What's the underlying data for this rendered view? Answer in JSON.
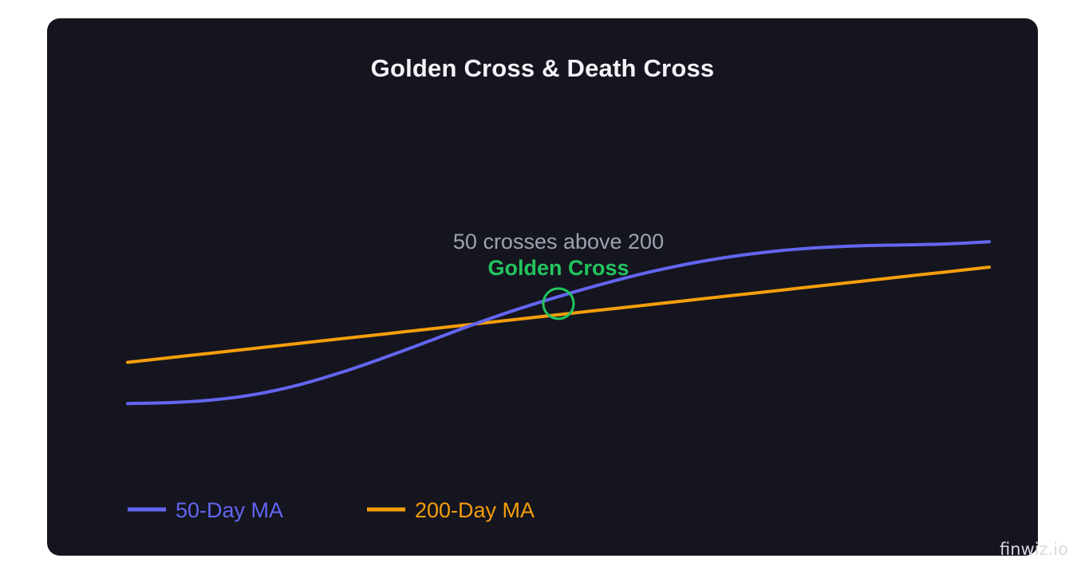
{
  "chart_data": {
    "type": "line",
    "title": "Golden Cross & Death Cross",
    "xlabel": "",
    "ylabel": "",
    "x": [
      0,
      5,
      10,
      15,
      20,
      25,
      30,
      35,
      40,
      45,
      50,
      55,
      60,
      65,
      70,
      75,
      80,
      85,
      90,
      95,
      100
    ],
    "series": [
      {
        "name": "50-Day MA",
        "color": "#6366f1",
        "values": [
          12,
          12.3,
          13.2,
          15,
          18,
          22,
          26.7,
          31.7,
          36.8,
          41.5,
          45.7,
          49.6,
          53.1,
          56,
          58.3,
          60,
          61.1,
          61.7,
          62,
          62.3,
          63
        ]
      },
      {
        "name": "200-Day MA",
        "color": "#f59e0b",
        "values": [
          25,
          26.5,
          28,
          29.5,
          31,
          32.5,
          34,
          35.5,
          37,
          38.5,
          40,
          41.5,
          43,
          44.5,
          46,
          47.5,
          49,
          50.5,
          52,
          53.5,
          55
        ]
      }
    ],
    "xlim": [
      0,
      100
    ],
    "ylim": [
      0,
      100
    ],
    "grid": false,
    "legend_position": "bottom-left",
    "annotations": [
      {
        "label": "Golden Cross",
        "text": "50 crosses above 200",
        "x": 50,
        "y": 43.5,
        "color": "#22c55e"
      }
    ]
  },
  "watermark": "finwiz.io",
  "colors": {
    "background": "#15151f",
    "title": "#f3f4f8",
    "annotation_text": "#9ca3af",
    "golden_cross": "#22c55e"
  }
}
